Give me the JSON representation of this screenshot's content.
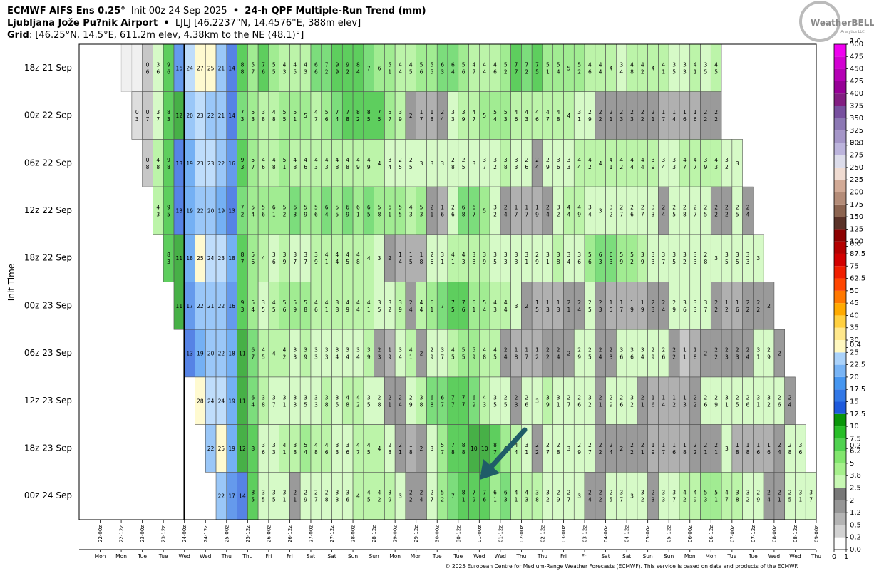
{
  "chart_data": {
    "type": "heatmap",
    "title": "ECMWF AIFS Ens 0.25°",
    "init": "Init 00z 24 Sep 2025",
    "separator": "•",
    "subtitle": "24-h QPF Multiple-Run Trend (mm)",
    "location": "Ljubljana Jože Pu?nik Airport",
    "station": "LJLJ [46.2237°N, 14.4576°E, 388m elev]",
    "grid_label": "Grid",
    "grid_info": ": [46.25°N, 14.5°E, 611.2m elev, 4.38km to the NE (48.1)°]",
    "logo": "WeatherBELL",
    "logo_sub": "Analytics LLC",
    "ylabel": "Init Time",
    "footer": "© 2025 European Centre for Medium-Range Weather Forecasts (ECMWF). This service is based on data and products of the ECMWF.",
    "step_hours": 6,
    "marker_x": "2025-09-24T00",
    "xlim": [
      "2025-09-21T12",
      "2025-10-09T00"
    ],
    "xticks": [
      {
        "value": "2025-09-22T00",
        "label": "22-00z"
      },
      {
        "value": "2025-09-22T12",
        "label": "22-12z"
      },
      {
        "value": "2025-09-23T00",
        "label": "23-00z"
      },
      {
        "value": "2025-09-23T12",
        "label": "23-12z"
      },
      {
        "value": "2025-09-24T00",
        "label": "24-00z"
      },
      {
        "value": "2025-09-24T12",
        "label": "24-12z"
      },
      {
        "value": "2025-09-25T00",
        "label": "25-00z"
      },
      {
        "value": "2025-09-25T12",
        "label": "25-12z"
      },
      {
        "value": "2025-09-26T00",
        "label": "26-00z"
      },
      {
        "value": "2025-09-26T12",
        "label": "26-12z"
      },
      {
        "value": "2025-09-27T00",
        "label": "27-00z"
      },
      {
        "value": "2025-09-27T12",
        "label": "27-12z"
      },
      {
        "value": "2025-09-28T00",
        "label": "28-00z"
      },
      {
        "value": "2025-09-28T12",
        "label": "28-12z"
      },
      {
        "value": "2025-09-29T00",
        "label": "29-00z"
      },
      {
        "value": "2025-09-29T12",
        "label": "29-12z"
      },
      {
        "value": "2025-09-30T00",
        "label": "30-00z"
      },
      {
        "value": "2025-09-30T12",
        "label": "30-12z"
      },
      {
        "value": "2025-10-01T00",
        "label": "01-00z"
      },
      {
        "value": "2025-10-01T12",
        "label": "01-12z"
      },
      {
        "value": "2025-10-02T00",
        "label": "02-00z"
      },
      {
        "value": "2025-10-02T12",
        "label": "02-12z"
      },
      {
        "value": "2025-10-03T00",
        "label": "03-00z"
      },
      {
        "value": "2025-10-03T12",
        "label": "03-12z"
      },
      {
        "value": "2025-10-04T00",
        "label": "04-00z"
      },
      {
        "value": "2025-10-04T12",
        "label": "04-12z"
      },
      {
        "value": "2025-10-05T00",
        "label": "05-00z"
      },
      {
        "value": "2025-10-05T12",
        "label": "05-12z"
      },
      {
        "value": "2025-10-06T00",
        "label": "06-00z"
      },
      {
        "value": "2025-10-06T12",
        "label": "06-12z"
      },
      {
        "value": "2025-10-07T00",
        "label": "07-00z"
      },
      {
        "value": "2025-10-07T12",
        "label": "07-12z"
      },
      {
        "value": "2025-10-08T00",
        "label": "08-00z"
      },
      {
        "value": "2025-10-08T12",
        "label": "08-12z"
      },
      {
        "value": "2025-10-09T00",
        "label": "09-00z"
      }
    ],
    "xtick_days": [
      "Mon",
      "Mon",
      "Tue",
      "Tue",
      "Wed",
      "Wed",
      "Thu",
      "Thu",
      "Fri",
      "Fri",
      "Sat",
      "Sat",
      "Sun",
      "Sun",
      "Mon",
      "Mon",
      "Tue",
      "Tue",
      "Wed",
      "Wed",
      "Thu",
      "Thu",
      "Fri",
      "Fri",
      "Sat",
      "Sat",
      "Sun",
      "Sun",
      "Mon",
      "Mon",
      "Tue",
      "Tue",
      "Wed",
      "Wed",
      "Thu"
    ],
    "rows": [
      {
        "label": "18z 21 Sep",
        "start": "2025-09-22T12",
        "values": [
          null,
          null,
          0.6,
          3.6,
          9.6,
          16,
          24,
          27,
          25,
          21,
          14,
          8.8,
          5.7,
          7.6,
          5.5,
          4.3,
          4.5,
          4.3,
          6.6,
          7.2,
          9.9,
          9.2,
          8.4,
          7,
          6,
          5.1,
          4.4,
          4.5,
          5.6,
          5.5,
          6.3,
          6.4,
          5.6,
          4.7,
          4.4,
          4.6,
          5.2,
          7.7,
          7.2,
          7.5,
          5.1,
          5.4,
          5,
          5.2,
          4.6,
          4.4,
          4,
          3.4,
          4.8,
          4.2,
          4,
          4.1,
          3.5,
          3.3,
          4.1,
          3.5,
          4.5
        ]
      },
      {
        "label": "00z 22 Sep",
        "start": "2025-09-22T18",
        "values": [
          0.3,
          0.7,
          3.7,
          8.3,
          12,
          20,
          23,
          22,
          21,
          14,
          7.3,
          5.3,
          3.8,
          4.8,
          5.5,
          5.1,
          5,
          4.7,
          5.6,
          7.4,
          7.8,
          8.2,
          8.5,
          7.5,
          5.7,
          3.9,
          2,
          1.7,
          1.8,
          2.4,
          3.3,
          3.9,
          4.7,
          5,
          5.4,
          5.3,
          4.6,
          4.3,
          4.6,
          4.7,
          4.8,
          4,
          3.1,
          2.9,
          2.2,
          2.1,
          2.3,
          2.3,
          2.2,
          2.1,
          1.7,
          1.4,
          1.6,
          1.6,
          2.2,
          2.2
        ]
      },
      {
        "label": "06z 22 Sep",
        "start": "2025-09-23T00",
        "values": [
          0.8,
          4.8,
          9.8,
          13,
          19,
          23,
          23,
          22,
          16,
          9.3,
          5.7,
          4.6,
          4.8,
          5.1,
          4.8,
          4.6,
          4.3,
          4.3,
          4.8,
          4.8,
          4.9,
          4.9,
          4,
          3.4,
          2.5,
          2.5,
          3,
          3,
          3,
          2.8,
          2.5,
          3,
          3.7,
          3.2,
          3.8,
          3.3,
          2.6,
          2.4,
          2.9,
          3.6,
          3.3,
          4.4,
          4.2,
          4,
          4.1,
          4.2,
          4.4,
          4.4,
          3.9,
          3.4,
          3.3,
          4.7,
          4.7,
          3.9,
          4.3,
          3.2,
          3
        ]
      },
      {
        "label": "12z 22 Sep",
        "start": "2025-09-23T06",
        "values": [
          4.3,
          9.5,
          13,
          19,
          22,
          20,
          19,
          13,
          7.2,
          5.4,
          5.6,
          6.1,
          5.2,
          6.3,
          5.9,
          5.6,
          6.4,
          5.5,
          6.9,
          6.1,
          6.5,
          5.8,
          6.1,
          5.5,
          4.3,
          5.3,
          2.1,
          1.6,
          2.6,
          6.8,
          6.7,
          5,
          3.2,
          2.4,
          1.7,
          1.7,
          1.9,
          2.4,
          3.2,
          4.4,
          4.9,
          3.4,
          3,
          3.2,
          2.7,
          2.6,
          2.7,
          3.3,
          2.4,
          2.5,
          2.8,
          2.7,
          2.5,
          2.2,
          2.2,
          2.5,
          2.4
        ]
      },
      {
        "label": "18z 22 Sep",
        "start": "2025-09-23T12",
        "values": [
          8.3,
          11,
          18,
          25,
          24,
          23,
          18,
          8.7,
          5.6,
          4,
          3.6,
          3.9,
          3.7,
          3.7,
          3.9,
          4.1,
          4.4,
          4.5,
          4.8,
          4,
          3,
          2,
          1.4,
          1.5,
          1.8,
          2.6,
          3.1,
          4.1,
          4.3,
          3.8,
          3.9,
          3.5,
          3.3,
          3.3,
          3.1,
          2.9,
          3.1,
          3.8,
          3.4,
          3.6,
          5.6,
          6.3,
          6.3,
          5.9,
          5.2,
          3.9,
          3.3,
          3.7,
          3.5,
          3.2,
          3.3,
          2.8,
          3,
          3.5,
          3.5,
          3.3,
          3
        ]
      },
      {
        "label": "00z 23 Sep",
        "start": "2025-09-23T18",
        "values": [
          11,
          17,
          22,
          21,
          22,
          16,
          9.3,
          5.4,
          3.5,
          4.5,
          5.6,
          5.9,
          5.8,
          4.6,
          4.1,
          3.8,
          4.9,
          4.4,
          4.1,
          3.5,
          3.2,
          3.9,
          2.4,
          4.4,
          6.1,
          7,
          7.5,
          7.6,
          6.1,
          5.4,
          4.3,
          4.4,
          3,
          2,
          1.5,
          1.3,
          1.3,
          2.1,
          2.4,
          2.5,
          2.3,
          1.5,
          1.7,
          1.9,
          1.9,
          2.3,
          2.4,
          2.9,
          3.6,
          3.3,
          3.7,
          2.2,
          1.2,
          1.6,
          2.2,
          2.2,
          2
        ]
      },
      {
        "label": "06z 23 Sep",
        "start": "2025-09-24T00",
        "values": [
          13,
          19,
          20,
          22,
          18,
          11,
          6.7,
          4.5,
          4,
          4.2,
          3.3,
          3.9,
          3.3,
          3.3,
          3.4,
          3.4,
          3.4,
          3.9,
          2.3,
          1.9,
          3.4,
          4.1,
          2,
          2.9,
          3.7,
          4.5,
          5.5,
          5.9,
          4.8,
          4.5,
          2.4,
          1.8,
          1.7,
          1.2,
          2.2,
          2.4,
          2,
          2.9,
          2.5,
          2.4,
          2.3,
          3.6,
          3.6,
          3.4,
          2.9,
          2.6,
          2.2,
          1.1,
          1.8,
          2,
          2.2,
          2.3,
          2.3,
          2.4,
          3.1,
          2.9,
          2
        ]
      },
      {
        "label": "12z 23 Sep",
        "start": "2025-09-24T06",
        "values": [
          28,
          24,
          24,
          19,
          11,
          6.4,
          3.8,
          3.7,
          3.1,
          3.3,
          3.5,
          3.3,
          3.8,
          3.5,
          4.8,
          4.2,
          3.5,
          2.8,
          2.1,
          2.4,
          2.9,
          3.8,
          6.8,
          6.7,
          7.7,
          7.7,
          6.9,
          4.3,
          3.5,
          2.5,
          2.3,
          2.6,
          3,
          3.9,
          3.1,
          2.7,
          2.6,
          3.2,
          2.1,
          2.9,
          2.6,
          3.2,
          2.1,
          1.6,
          1.4,
          1.2,
          1.3,
          2.2,
          2.6,
          2.9,
          3.1,
          2.5,
          2.6,
          3.1,
          3.2,
          2.6,
          2.4
        ]
      },
      {
        "label": "18z 23 Sep",
        "start": "2025-09-24T12",
        "values": [
          22,
          25,
          19,
          12,
          8,
          3.6,
          3.3,
          4.1,
          3.8,
          5.4,
          4.8,
          4.6,
          3.3,
          3.6,
          4.7,
          4.5,
          4,
          2.8,
          2.1,
          1.8,
          2,
          3,
          5.7,
          7.8,
          8.8,
          10,
          10,
          8.7,
          6,
          4.4,
          3.1,
          2.2,
          2.7,
          2.8,
          3,
          2.9,
          2.7,
          2.2,
          2.4,
          2,
          2.2,
          2.1,
          1.9,
          1.7,
          1.6,
          1.8,
          2.2,
          2.1,
          2.1,
          3,
          1.8,
          1.8,
          1.6,
          1.6,
          2.4,
          2.8,
          3.6
        ]
      },
      {
        "label": "00z 24 Sep",
        "start": "2025-09-24T18",
        "values": [
          22,
          17,
          14,
          8.5,
          3.5,
          3.5,
          3.1,
          2.1,
          2.9,
          2.7,
          2.8,
          3.3,
          3.6,
          4,
          4.5,
          4.2,
          3.9,
          3,
          2.2,
          2.4,
          2.7,
          5.2,
          7,
          8.1,
          7.9,
          7.6,
          6.1,
          6.3,
          4.1,
          4.3,
          3.8,
          3.2,
          2.9,
          2.7,
          3,
          2.4,
          2.2,
          2.5,
          3.7,
          3,
          3.2,
          2.3,
          3.3,
          3.7,
          4.2,
          4.9,
          5.3,
          5.1,
          4.7,
          3.8,
          3.2,
          2.9,
          2.4,
          2.1,
          2.5,
          3.1,
          3.7
        ]
      }
    ],
    "colorbar": {
      "levels": [
        {
          "value": 0,
          "label": "0.0"
        },
        0.2,
        0.5,
        1.2,
        2,
        2.5,
        3.8,
        5,
        6.2,
        7.5,
        10,
        12.5,
        15,
        17.5,
        20,
        22.5,
        25,
        30,
        35,
        40,
        45,
        50,
        62.5,
        75,
        87.5,
        100,
        125,
        150,
        175,
        200,
        225,
        250,
        275,
        300,
        325,
        350,
        375,
        400,
        425,
        450,
        475,
        500
      ],
      "colors": [
        "#ffffff",
        "#d2d2d2",
        "#b4b4b4",
        "#969696",
        "#787878",
        "#c8f8b4",
        "#a6f08c",
        "#82e66e",
        "#50d250",
        "#28be28",
        "#0a960a",
        "#1e5adc",
        "#3278e6",
        "#4696f0",
        "#78b4f5",
        "#aad2fa",
        "#fff8c0",
        "#ffe88c",
        "#ffd040",
        "#ffaa00",
        "#ff7800",
        "#ff4600",
        "#f01e00",
        "#d20000",
        "#b40000",
        "#8c0000",
        "#5a3228",
        "#8c6450",
        "#b48c78",
        "#d2aa96",
        "#f0dcd2",
        "#dcdcea",
        "#bcb4dc",
        "#a596c8",
        "#8c78b4",
        "#78509f",
        "#821e82",
        "#960096",
        "#b400b4",
        "#d200d2",
        "#f000f0"
      ],
      "overlay_ticks": [
        0.2,
        0.4,
        0.6,
        0.8,
        {
          "value": 1,
          "label": "1.0"
        }
      ],
      "xticks": [
        0,
        1
      ]
    }
  }
}
